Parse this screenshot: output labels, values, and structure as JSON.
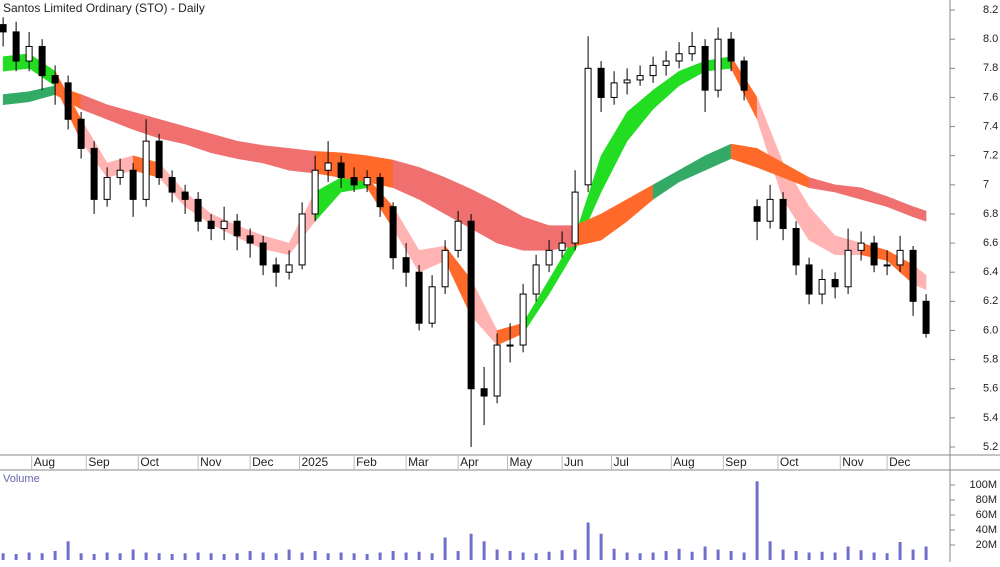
{
  "chart_data": {
    "type": "candlestick",
    "title": "Santos Limited Ordinary (STO) - Daily",
    "x": [
      0,
      5,
      10,
      15,
      20,
      25,
      30,
      35,
      40,
      45,
      50,
      55,
      60,
      65,
      70,
      75,
      80,
      85,
      90,
      95,
      100,
      105,
      110,
      115,
      120,
      125,
      130,
      135,
      140,
      145,
      150,
      155,
      160,
      165,
      170,
      175,
      180,
      185,
      190,
      195,
      200,
      205,
      210,
      215,
      220,
      225,
      230,
      235,
      240,
      245,
      250,
      255,
      260,
      265,
      270,
      275,
      280,
      285,
      290,
      295,
      300,
      305,
      310,
      315,
      320,
      325,
      330,
      335,
      340,
      345,
      350,
      355
    ],
    "open": [
      8.1,
      8.05,
      7.85,
      7.95,
      7.75,
      7.7,
      7.45,
      7.25,
      6.9,
      7.05,
      7.1,
      6.9,
      7.3,
      7.05,
      6.95,
      6.9,
      6.75,
      6.7,
      6.75,
      6.65,
      6.6,
      6.45,
      6.4,
      6.45,
      6.8,
      7.1,
      7.15,
      7.05,
      7.0,
      7.05,
      6.85,
      6.5,
      6.4,
      6.05,
      6.3,
      6.55,
      6.75,
      5.6,
      5.55,
      5.9,
      5.9,
      6.25,
      6.45,
      6.55,
      6.6,
      7.0,
      7.8,
      7.6,
      7.7,
      7.72,
      7.75,
      7.82,
      7.85,
      7.9,
      7.95,
      7.65,
      8.0,
      7.85,
      6.85,
      6.75,
      6.9,
      6.7,
      6.45,
      6.25,
      6.35,
      6.3,
      6.55,
      6.6,
      6.45,
      6.45,
      6.55,
      6.2
    ],
    "high": [
      8.15,
      8.12,
      8.05,
      8.0,
      7.82,
      7.75,
      7.5,
      7.3,
      7.12,
      7.18,
      7.15,
      7.45,
      7.35,
      7.1,
      7.0,
      6.95,
      6.8,
      6.85,
      6.8,
      6.7,
      6.65,
      6.5,
      6.55,
      6.88,
      7.2,
      7.3,
      7.2,
      7.12,
      7.1,
      7.08,
      6.88,
      6.6,
      6.45,
      6.38,
      6.62,
      6.82,
      6.8,
      5.75,
      5.98,
      6.05,
      6.32,
      6.52,
      6.62,
      6.68,
      7.1,
      8.02,
      7.85,
      7.78,
      7.8,
      7.82,
      7.88,
      7.92,
      7.98,
      8.05,
      8.0,
      8.08,
      8.05,
      7.88,
      6.9,
      7.0,
      6.95,
      6.75,
      6.5,
      6.42,
      6.4,
      6.7,
      6.68,
      6.65,
      6.55,
      6.65,
      6.58,
      6.25
    ],
    "low": [
      7.95,
      7.78,
      7.78,
      7.65,
      7.55,
      7.38,
      7.18,
      6.8,
      6.85,
      7.0,
      6.78,
      6.85,
      7.0,
      6.88,
      6.8,
      6.68,
      6.62,
      6.62,
      6.55,
      6.5,
      6.38,
      6.3,
      6.35,
      6.42,
      6.75,
      7.02,
      6.98,
      6.95,
      6.95,
      6.78,
      6.42,
      6.3,
      6.0,
      6.02,
      6.25,
      6.5,
      5.2,
      5.35,
      5.5,
      5.78,
      5.85,
      6.2,
      6.4,
      6.5,
      6.55,
      6.95,
      7.5,
      7.55,
      7.62,
      7.68,
      7.7,
      7.75,
      7.8,
      7.85,
      7.5,
      7.6,
      7.78,
      7.58,
      6.62,
      6.7,
      6.62,
      6.38,
      6.18,
      6.18,
      6.22,
      6.25,
      6.48,
      6.4,
      6.38,
      6.4,
      6.1,
      5.95
    ],
    "close": [
      8.05,
      7.85,
      7.95,
      7.75,
      7.7,
      7.45,
      7.25,
      6.9,
      7.05,
      7.1,
      6.9,
      7.3,
      7.05,
      6.95,
      6.9,
      6.75,
      6.7,
      6.75,
      6.65,
      6.6,
      6.45,
      6.4,
      6.45,
      6.8,
      7.1,
      7.15,
      7.05,
      7.0,
      7.05,
      6.85,
      6.5,
      6.4,
      6.05,
      6.3,
      6.55,
      6.75,
      5.6,
      5.55,
      5.9,
      5.9,
      6.25,
      6.45,
      6.55,
      6.6,
      6.95,
      7.8,
      7.6,
      7.7,
      7.72,
      7.75,
      7.82,
      7.85,
      7.9,
      7.95,
      7.65,
      8.0,
      7.85,
      7.65,
      6.75,
      6.9,
      6.7,
      6.45,
      6.25,
      6.35,
      6.3,
      6.55,
      6.6,
      6.45,
      6.45,
      6.55,
      6.2,
      5.98
    ],
    "xlim": [
      -1.2,
      364.2
    ],
    "ylim": [
      5.145,
      8.269
    ],
    "yticks": [
      5.2,
      5.4,
      5.6,
      5.8,
      {
        "value": 6,
        "label": "6.0"
      },
      6.2,
      6.4,
      6.6,
      6.8,
      7,
      7.2,
      7.4,
      7.6,
      7.8,
      {
        "value": 8,
        "label": "8.0"
      },
      8.2
    ],
    "xticks": [
      {
        "value": 11,
        "label": "Aug"
      },
      {
        "value": 32,
        "label": "Sep"
      },
      {
        "value": 52,
        "label": "Oct"
      },
      {
        "value": 75,
        "label": "Nov"
      },
      {
        "value": 95,
        "label": "Dec"
      },
      {
        "value": 114,
        "label": "2025"
      },
      {
        "value": 135,
        "label": "Feb"
      },
      {
        "value": 155,
        "label": "Mar"
      },
      {
        "value": 175,
        "label": "Apr"
      },
      {
        "value": 194,
        "label": "May"
      },
      {
        "value": 215,
        "label": "Jun"
      },
      {
        "value": 234,
        "label": "Jul"
      },
      {
        "value": 257,
        "label": "Aug"
      },
      {
        "value": 277,
        "label": "Sep"
      },
      {
        "value": 298,
        "label": "Oct"
      },
      {
        "value": 322,
        "label": "Nov"
      },
      {
        "value": 340,
        "label": "Dec"
      }
    ],
    "ribbon_x": [
      0,
      10,
      20,
      30,
      40,
      50,
      60,
      70,
      80,
      90,
      100,
      110,
      120,
      130,
      140,
      150,
      160,
      170,
      180,
      190,
      200,
      210,
      220,
      230,
      240,
      250,
      260,
      270,
      280,
      290,
      300,
      310,
      320,
      330,
      340,
      350,
      355
    ],
    "ribbons": [
      {
        "upper": [
          7.88,
          7.9,
          7.78,
          7.45,
          7.15,
          7.2,
          7.15,
          6.95,
          6.8,
          6.72,
          6.65,
          6.6,
          6.95,
          7.05,
          7.05,
          6.85,
          6.55,
          6.58,
          6.35,
          6.0,
          6.05,
          6.35,
          6.65,
          7.2,
          7.5,
          7.65,
          7.78,
          7.85,
          7.88,
          7.6,
          7.15,
          6.85,
          6.65,
          6.6,
          6.55,
          6.45,
          6.38
        ],
        "lower": [
          7.78,
          7.8,
          7.68,
          7.3,
          7.05,
          7.1,
          7.05,
          6.85,
          6.73,
          6.64,
          6.56,
          6.52,
          6.75,
          6.95,
          6.98,
          6.7,
          6.4,
          6.48,
          6.1,
          5.9,
          5.98,
          6.25,
          6.55,
          6.95,
          7.3,
          7.52,
          7.68,
          7.78,
          7.8,
          7.45,
          6.9,
          6.62,
          6.52,
          6.52,
          6.48,
          6.32,
          6.28
        ],
        "colors": [
          "#22dd22",
          "#22dd22",
          "#ff6a2a",
          "#ffb3b3",
          "#ffb3b3",
          "#ff6a2a",
          "#ffb3b3",
          "#ffb3b3",
          "#ffb3b3",
          "#ffb3b3",
          "#ffb3b3",
          "#ffb3b3",
          "#22dd22",
          "#22dd22",
          "#ff6a2a",
          "#ffb3b3",
          "#ffb3b3",
          "#ff6a2a",
          "#ffb3b3",
          "#ff6a2a",
          "#22dd22",
          "#22dd22",
          "#22dd22",
          "#22dd22",
          "#22dd22",
          "#22dd22",
          "#22dd22",
          "#22dd22",
          "#ff6a2a",
          "#ffb3b3",
          "#ffb3b3",
          "#ffb3b3",
          "#ffb3b3",
          "#ff6a2a",
          "#ff6a2a",
          "#ffb3b3",
          "#ffb3b3"
        ]
      },
      {
        "upper": [
          7.62,
          7.64,
          7.68,
          7.62,
          7.55,
          7.5,
          7.45,
          7.4,
          7.35,
          7.3,
          7.27,
          7.25,
          7.23,
          7.22,
          7.2,
          7.17,
          7.12,
          7.05,
          6.97,
          6.88,
          6.78,
          6.72,
          6.72,
          6.8,
          6.9,
          7.0,
          7.1,
          7.2,
          7.28,
          7.25,
          7.15,
          7.05,
          7.0,
          6.98,
          6.92,
          6.85,
          6.82
        ],
        "lower": [
          7.55,
          7.57,
          7.62,
          7.52,
          7.45,
          7.38,
          7.32,
          7.28,
          7.22,
          7.18,
          7.15,
          7.1,
          7.08,
          7.05,
          7.02,
          6.98,
          6.9,
          6.8,
          6.7,
          6.6,
          6.55,
          6.55,
          6.58,
          6.62,
          6.75,
          6.9,
          7.02,
          7.1,
          7.18,
          7.12,
          7.05,
          6.98,
          6.95,
          6.9,
          6.85,
          6.78,
          6.75
        ],
        "colors": [
          "#33aa66",
          "#33aa66",
          "#ff6a2a",
          "#f07070",
          "#f07070",
          "#f07070",
          "#f07070",
          "#f07070",
          "#f07070",
          "#f07070",
          "#f07070",
          "#f07070",
          "#ff6a2a",
          "#ff6a2a",
          "#ff6a2a",
          "#f07070",
          "#f07070",
          "#f07070",
          "#f07070",
          "#f07070",
          "#f07070",
          "#f07070",
          "#ff6a2a",
          "#ff6a2a",
          "#ff6a2a",
          "#33aa66",
          "#33aa66",
          "#33aa66",
          "#ff6a2a",
          "#ff6a2a",
          "#ff6a2a",
          "#f07070",
          "#f07070",
          "#f07070",
          "#f07070",
          "#f07070",
          "#f07070"
        ]
      }
    ],
    "volume": {
      "label": "Volume",
      "color": "#7070cc",
      "values": [
        9000000,
        8000000,
        10000000,
        9000000,
        12000000,
        25000000,
        9000000,
        8000000,
        10000000,
        9000000,
        14000000,
        10000000,
        9000000,
        8000000,
        9000000,
        10000000,
        9000000,
        8000000,
        9000000,
        12000000,
        10000000,
        9000000,
        14000000,
        10000000,
        12000000,
        9000000,
        10000000,
        9000000,
        8000000,
        10000000,
        12000000,
        10000000,
        11000000,
        9000000,
        30000000,
        12000000,
        35000000,
        25000000,
        14000000,
        12000000,
        10000000,
        9000000,
        11000000,
        13000000,
        14000000,
        50000000,
        35000000,
        15000000,
        10000000,
        9000000,
        10000000,
        12000000,
        15000000,
        11000000,
        18000000,
        14000000,
        12000000,
        10000000,
        105000000,
        25000000,
        14000000,
        12000000,
        10000000,
        11000000,
        10000000,
        18000000,
        13000000,
        10000000,
        9000000,
        24000000,
        14000000,
        18000000
      ],
      "ylim": [
        0,
        120000000
      ],
      "yticks": [
        {
          "value": 20000000,
          "label": "20M"
        },
        {
          "value": 40000000,
          "label": "40M"
        },
        {
          "value": 60000000,
          "label": "60M"
        },
        {
          "value": 80000000,
          "label": "80M"
        },
        {
          "value": 100000000,
          "label": "100M"
        }
      ]
    }
  }
}
